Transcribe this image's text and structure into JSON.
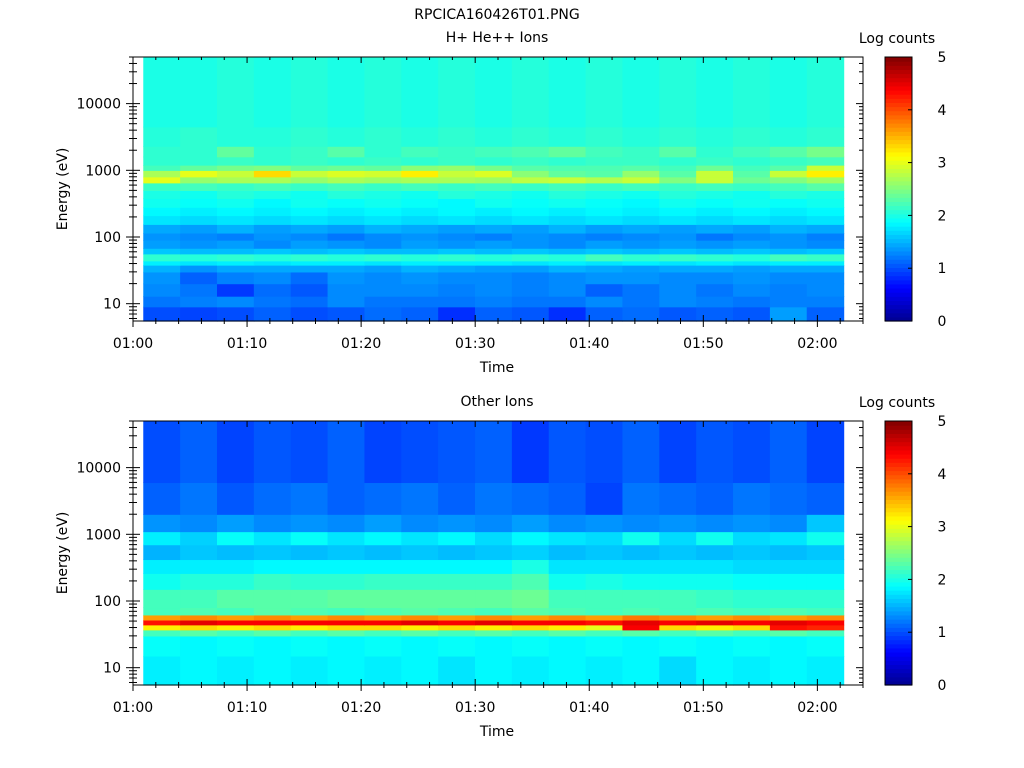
{
  "figure_title": "RPCICA160426T01.PNG",
  "colormap": [
    "#00008f",
    "#0000ff",
    "#0080ff",
    "#00ffff",
    "#80ff80",
    "#ffff00",
    "#ff8000",
    "#ff0000",
    "#800000"
  ],
  "chart_data": [
    {
      "type": "heatmap",
      "title": "H+ He++ Ions",
      "xlabel": "Time",
      "ylabel": "Energy (eV)",
      "x_ticks": [
        "01:00",
        "01:10",
        "01:20",
        "01:30",
        "01:40",
        "01:50",
        "02:00"
      ],
      "x_range_minutes": [
        0,
        64
      ],
      "data_time_range_minutes": [
        0.9,
        62.3
      ],
      "yscale": "log",
      "ylim": [
        5.5,
        50000
      ],
      "y_ticks": [
        "10",
        "100",
        "1000",
        "10000"
      ],
      "colorbar": {
        "label": "Log counts",
        "range": [
          0,
          5
        ],
        "ticks": [
          "0",
          "1",
          "2",
          "3",
          "4",
          "5"
        ]
      },
      "time_bins": 19,
      "energy_bins": [
        {
          "e_lo": 5.5,
          "e_hi": 9,
          "values": [
            1.0,
            0.95,
            1.0,
            1.1,
            1.0,
            1.05,
            1.15,
            1.1,
            0.85,
            1.1,
            1.05,
            0.85,
            1.1,
            1.15,
            1.05,
            1.1,
            1.05,
            1.4,
            1.1
          ]
        },
        {
          "e_lo": 9,
          "e_hi": 13,
          "values": [
            1.2,
            1.25,
            1.3,
            1.2,
            1.15,
            1.3,
            1.2,
            1.2,
            1.2,
            1.25,
            1.2,
            1.2,
            1.3,
            1.2,
            1.3,
            1.25,
            1.2,
            1.25,
            1.25
          ]
        },
        {
          "e_lo": 13,
          "e_hi": 20,
          "values": [
            1.3,
            1.2,
            0.9,
            1.15,
            1.05,
            1.3,
            1.3,
            1.3,
            1.25,
            1.3,
            1.25,
            1.3,
            1.1,
            1.2,
            1.3,
            1.2,
            1.3,
            1.25,
            1.3
          ]
        },
        {
          "e_lo": 20,
          "e_hi": 30,
          "values": [
            1.35,
            1.1,
            1.25,
            1.3,
            1.15,
            1.35,
            1.3,
            1.35,
            1.3,
            1.3,
            1.25,
            1.3,
            1.35,
            1.35,
            1.3,
            1.3,
            1.35,
            1.3,
            1.3
          ]
        },
        {
          "e_lo": 30,
          "e_hi": 38,
          "values": [
            1.5,
            1.35,
            1.45,
            1.45,
            1.45,
            1.45,
            1.4,
            1.5,
            1.45,
            1.4,
            1.4,
            1.5,
            1.45,
            1.4,
            1.45,
            1.45,
            1.4,
            1.45,
            1.45
          ]
        },
        {
          "e_lo": 38,
          "e_hi": 44,
          "values": [
            1.8,
            1.75,
            1.8,
            1.75,
            1.8,
            1.8,
            1.75,
            1.8,
            1.8,
            1.8,
            1.75,
            1.8,
            1.75,
            1.8,
            1.75,
            1.8,
            1.75,
            1.8,
            1.8
          ]
        },
        {
          "e_lo": 44,
          "e_hi": 56,
          "values": [
            2.1,
            2.05,
            2.1,
            2.05,
            2.1,
            2.05,
            2.1,
            2.05,
            2.1,
            2.05,
            2.1,
            2.05,
            2.2,
            2.1,
            2.15,
            2.1,
            2.05,
            2.2,
            2.15
          ]
        },
        {
          "e_lo": 56,
          "e_hi": 68,
          "values": [
            1.6,
            1.55,
            1.55,
            1.6,
            1.55,
            1.6,
            1.55,
            1.55,
            1.6,
            1.55,
            1.6,
            1.55,
            1.6,
            1.55,
            1.6,
            1.55,
            1.6,
            1.55,
            1.6
          ]
        },
        {
          "e_lo": 68,
          "e_hi": 90,
          "values": [
            1.4,
            1.35,
            1.4,
            1.3,
            1.4,
            1.35,
            1.3,
            1.4,
            1.35,
            1.4,
            1.35,
            1.3,
            1.4,
            1.35,
            1.4,
            1.35,
            1.4,
            1.35,
            1.3
          ]
        },
        {
          "e_lo": 90,
          "e_hi": 115,
          "values": [
            1.35,
            1.3,
            1.25,
            1.35,
            1.3,
            1.2,
            1.3,
            1.35,
            1.3,
            1.25,
            1.35,
            1.3,
            1.25,
            1.3,
            1.35,
            1.2,
            1.3,
            1.35,
            1.25
          ]
        },
        {
          "e_lo": 115,
          "e_hi": 155,
          "values": [
            1.45,
            1.4,
            1.5,
            1.4,
            1.45,
            1.4,
            1.5,
            1.45,
            1.4,
            1.45,
            1.4,
            1.5,
            1.4,
            1.45,
            1.4,
            1.45,
            1.4,
            1.5,
            1.45
          ]
        },
        {
          "e_lo": 155,
          "e_hi": 210,
          "values": [
            1.75,
            1.7,
            1.75,
            1.7,
            1.75,
            1.7,
            1.75,
            1.7,
            1.75,
            1.7,
            1.75,
            1.7,
            1.75,
            1.7,
            1.75,
            1.7,
            1.75,
            1.7,
            1.75
          ]
        },
        {
          "e_lo": 210,
          "e_hi": 280,
          "values": [
            1.85,
            1.8,
            1.85,
            1.8,
            1.85,
            1.8,
            1.85,
            1.8,
            1.85,
            1.8,
            1.85,
            1.8,
            1.85,
            1.8,
            1.85,
            1.8,
            1.85,
            1.8,
            1.85
          ]
        },
        {
          "e_lo": 280,
          "e_hi": 380,
          "values": [
            1.95,
            1.9,
            1.95,
            1.85,
            1.95,
            1.9,
            1.95,
            1.9,
            1.85,
            1.95,
            1.9,
            1.95,
            1.9,
            1.85,
            1.95,
            1.9,
            1.95,
            1.9,
            1.95
          ]
        },
        {
          "e_lo": 380,
          "e_hi": 500,
          "values": [
            2.0,
            1.95,
            2.05,
            2.0,
            1.95,
            2.05,
            2.0,
            1.95,
            2.05,
            2.0,
            1.95,
            2.05,
            2.0,
            1.95,
            2.05,
            2.0,
            1.95,
            2.05,
            2.0
          ]
        },
        {
          "e_lo": 500,
          "e_hi": 650,
          "values": [
            2.15,
            2.2,
            2.15,
            2.2,
            2.15,
            2.2,
            2.15,
            2.2,
            2.15,
            2.2,
            2.15,
            2.2,
            2.15,
            2.2,
            2.15,
            2.2,
            2.15,
            2.2,
            2.3
          ]
        },
        {
          "e_lo": 650,
          "e_hi": 800,
          "values": [
            3.0,
            2.6,
            2.7,
            2.7,
            2.6,
            2.7,
            2.65,
            2.7,
            2.7,
            2.65,
            2.8,
            2.85,
            2.75,
            2.85,
            2.5,
            2.85,
            2.4,
            2.5,
            2.65
          ]
        },
        {
          "e_lo": 800,
          "e_hi": 1000,
          "values": [
            2.7,
            3.0,
            2.85,
            3.3,
            2.85,
            2.95,
            2.9,
            3.2,
            2.85,
            2.95,
            2.55,
            2.35,
            2.3,
            2.6,
            2.3,
            2.85,
            2.3,
            2.85,
            3.2
          ]
        },
        {
          "e_lo": 1000,
          "e_hi": 1200,
          "values": [
            2.2,
            2.35,
            2.45,
            2.5,
            2.35,
            2.4,
            2.35,
            2.55,
            2.6,
            2.45,
            2.3,
            2.25,
            2.25,
            2.3,
            2.2,
            2.4,
            2.2,
            2.3,
            2.85
          ]
        },
        {
          "e_lo": 1200,
          "e_hi": 1600,
          "values": [
            2.1,
            2.1,
            2.15,
            2.1,
            2.15,
            2.1,
            2.15,
            2.1,
            2.15,
            2.1,
            2.15,
            2.1,
            2.15,
            2.15,
            2.1,
            2.15,
            2.1,
            2.15,
            2.2
          ]
        },
        {
          "e_lo": 1600,
          "e_hi": 2300,
          "values": [
            2.1,
            2.1,
            2.35,
            2.1,
            2.15,
            2.3,
            2.1,
            2.2,
            2.15,
            2.2,
            2.25,
            2.35,
            2.2,
            2.15,
            2.3,
            2.1,
            2.2,
            2.3,
            2.45
          ]
        },
        {
          "e_lo": 2300,
          "e_hi": 4500,
          "values": [
            2.05,
            2.1,
            2.05,
            2.05,
            2.1,
            2.05,
            2.1,
            2.05,
            2.1,
            2.05,
            2.1,
            2.05,
            2.1,
            2.05,
            2.1,
            2.05,
            2.1,
            2.05,
            2.1
          ]
        },
        {
          "e_lo": 4500,
          "e_hi": 50000,
          "values": [
            2.0,
            2.0,
            2.05,
            2.0,
            2.05,
            2.0,
            2.05,
            2.0,
            2.05,
            2.0,
            2.05,
            2.0,
            2.05,
            2.0,
            2.05,
            2.0,
            2.05,
            2.0,
            2.05
          ]
        }
      ]
    },
    {
      "type": "heatmap",
      "title": "Other Ions",
      "xlabel": "Time",
      "ylabel": "Energy (eV)",
      "x_ticks": [
        "01:00",
        "01:10",
        "01:20",
        "01:30",
        "01:40",
        "01:50",
        "02:00"
      ],
      "x_range_minutes": [
        0,
        64
      ],
      "data_time_range_minutes": [
        0.9,
        62.3
      ],
      "yscale": "log",
      "ylim": [
        5.5,
        50000
      ],
      "y_ticks": [
        "10",
        "100",
        "1000",
        "10000"
      ],
      "colorbar": {
        "label": "Log counts",
        "range": [
          0,
          5
        ],
        "ticks": [
          "0",
          "1",
          "2",
          "3",
          "4",
          "5"
        ]
      },
      "time_bins": 19,
      "energy_bins": [
        {
          "e_lo": 5.5,
          "e_hi": 15,
          "values": [
            1.8,
            1.85,
            1.8,
            1.85,
            1.8,
            1.85,
            1.8,
            1.85,
            1.75,
            1.85,
            1.8,
            1.85,
            1.8,
            1.85,
            1.7,
            1.85,
            1.8,
            1.85,
            1.8
          ]
        },
        {
          "e_lo": 15,
          "e_hi": 30,
          "values": [
            1.9,
            1.85,
            1.9,
            1.85,
            1.9,
            1.85,
            1.9,
            1.85,
            1.9,
            1.85,
            1.9,
            1.85,
            1.9,
            1.85,
            1.9,
            1.85,
            1.9,
            1.85,
            1.9
          ]
        },
        {
          "e_lo": 30,
          "e_hi": 37,
          "values": [
            2.2,
            2.3,
            2.2,
            2.3,
            2.2,
            2.3,
            2.2,
            2.3,
            2.2,
            2.3,
            2.2,
            2.3,
            2.2,
            2.3,
            2.2,
            2.3,
            2.2,
            2.3,
            2.2
          ]
        },
        {
          "e_lo": 37,
          "e_hi": 44,
          "values": [
            3.2,
            3.3,
            3.2,
            3.3,
            3.2,
            3.3,
            3.3,
            3.2,
            3.3,
            3.2,
            3.3,
            3.2,
            3.0,
            4.4,
            3.3,
            3.2,
            3.3,
            4.3,
            4.2
          ]
        },
        {
          "e_lo": 44,
          "e_hi": 52,
          "values": [
            4.3,
            4.5,
            4.4,
            4.4,
            4.4,
            4.4,
            4.4,
            4.5,
            4.4,
            4.5,
            4.4,
            4.4,
            4.3,
            4.5,
            4.4,
            4.5,
            4.4,
            4.5,
            4.4
          ]
        },
        {
          "e_lo": 52,
          "e_hi": 62,
          "values": [
            3.6,
            3.7,
            3.6,
            3.7,
            3.6,
            3.7,
            3.6,
            3.7,
            3.6,
            3.7,
            3.6,
            3.7,
            3.6,
            3.8,
            3.7,
            3.6,
            3.7,
            3.6,
            3.7
          ]
        },
        {
          "e_lo": 62,
          "e_hi": 80,
          "values": [
            2.2,
            2.25,
            2.2,
            2.3,
            2.25,
            2.2,
            2.25,
            2.3,
            2.25,
            2.2,
            2.3,
            2.25,
            2.2,
            2.25,
            2.2,
            2.25,
            2.2,
            2.25,
            2.2
          ]
        },
        {
          "e_lo": 80,
          "e_hi": 150,
          "values": [
            2.2,
            2.2,
            2.3,
            2.3,
            2.3,
            2.35,
            2.35,
            2.35,
            2.35,
            2.35,
            2.4,
            2.2,
            2.2,
            2.2,
            2.2,
            2.15,
            2.1,
            2.1,
            2.1
          ]
        },
        {
          "e_lo": 150,
          "e_hi": 260,
          "values": [
            1.95,
            2.05,
            2.05,
            2.15,
            2.1,
            2.1,
            2.15,
            2.15,
            2.15,
            2.15,
            2.25,
            1.95,
            2.0,
            1.95,
            1.95,
            1.95,
            1.9,
            1.9,
            1.9
          ]
        },
        {
          "e_lo": 260,
          "e_hi": 420,
          "values": [
            1.8,
            1.8,
            1.8,
            1.85,
            1.85,
            1.85,
            1.85,
            1.85,
            1.85,
            1.85,
            2.0,
            1.75,
            1.75,
            1.75,
            1.75,
            1.75,
            1.7,
            1.7,
            1.7
          ]
        },
        {
          "e_lo": 420,
          "e_hi": 700,
          "values": [
            1.5,
            1.6,
            1.55,
            1.6,
            1.55,
            1.6,
            1.55,
            1.6,
            1.55,
            1.6,
            1.65,
            1.55,
            1.6,
            1.55,
            1.6,
            1.55,
            1.6,
            1.55,
            1.6
          ]
        },
        {
          "e_lo": 700,
          "e_hi": 1100,
          "values": [
            1.8,
            1.65,
            1.9,
            1.75,
            1.9,
            1.75,
            1.85,
            1.75,
            1.85,
            1.7,
            1.85,
            1.75,
            1.7,
            1.95,
            1.7,
            1.95,
            1.7,
            1.75,
            1.95
          ]
        },
        {
          "e_lo": 1100,
          "e_hi": 2000,
          "values": [
            1.35,
            1.3,
            1.4,
            1.3,
            1.35,
            1.3,
            1.4,
            1.3,
            1.35,
            1.3,
            1.4,
            1.3,
            1.35,
            1.3,
            1.35,
            1.3,
            1.35,
            1.3,
            1.6
          ]
        },
        {
          "e_lo": 2000,
          "e_hi": 6000,
          "values": [
            1.1,
            1.2,
            1.05,
            1.15,
            1.2,
            1.1,
            1.15,
            1.2,
            1.1,
            1.2,
            1.15,
            1.1,
            0.95,
            1.2,
            1.15,
            1.1,
            1.2,
            1.15,
            1.1
          ]
        },
        {
          "e_lo": 6000,
          "e_hi": 50000,
          "values": [
            1.0,
            1.1,
            0.95,
            1.05,
            1.0,
            1.1,
            0.95,
            1.0,
            1.05,
            1.1,
            0.9,
            1.05,
            1.0,
            1.1,
            0.95,
            1.05,
            1.0,
            1.1,
            0.95
          ]
        }
      ]
    }
  ]
}
